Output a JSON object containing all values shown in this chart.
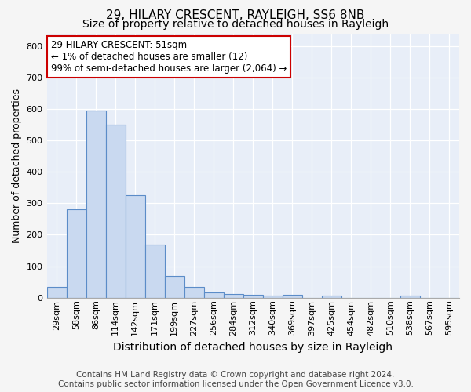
{
  "title1": "29, HILARY CRESCENT, RAYLEIGH, SS6 8NB",
  "title2": "Size of property relative to detached houses in Rayleigh",
  "xlabel": "Distribution of detached houses by size in Rayleigh",
  "ylabel": "Number of detached properties",
  "categories": [
    "29sqm",
    "58sqm",
    "86sqm",
    "114sqm",
    "142sqm",
    "171sqm",
    "199sqm",
    "227sqm",
    "256sqm",
    "284sqm",
    "312sqm",
    "340sqm",
    "369sqm",
    "397sqm",
    "425sqm",
    "454sqm",
    "482sqm",
    "510sqm",
    "538sqm",
    "567sqm",
    "595sqm"
  ],
  "values": [
    35,
    280,
    595,
    550,
    325,
    170,
    68,
    35,
    18,
    12,
    10,
    8,
    10,
    0,
    8,
    0,
    0,
    0,
    8,
    0,
    0
  ],
  "bar_color": "#c9d9f0",
  "bar_edge_color": "#5b8cc8",
  "annotation_box_text": "29 HILARY CRESCENT: 51sqm\n← 1% of detached houses are smaller (12)\n99% of semi-detached houses are larger (2,064) →",
  "annotation_box_color": "#ffffff",
  "annotation_box_edge_color": "#cc0000",
  "background_color": "#e8eef8",
  "fig_background_color": "#f5f5f5",
  "grid_color": "#ffffff",
  "footer_line1": "Contains HM Land Registry data © Crown copyright and database right 2024.",
  "footer_line2": "Contains public sector information licensed under the Open Government Licence v3.0.",
  "ylim": [
    0,
    840
  ],
  "yticks": [
    0,
    100,
    200,
    300,
    400,
    500,
    600,
    700,
    800
  ],
  "title1_fontsize": 11,
  "title2_fontsize": 10,
  "xlabel_fontsize": 10,
  "ylabel_fontsize": 9,
  "tick_fontsize": 8,
  "footer_fontsize": 7.5
}
